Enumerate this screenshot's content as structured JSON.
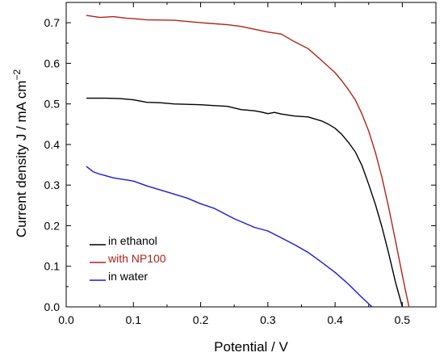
{
  "chart_data": {
    "type": "line",
    "xlabel": "Potential / V",
    "ylabel": "Current density J / mA cm",
    "ylabel_superscript": "−2",
    "xlim": [
      0.0,
      0.55
    ],
    "ylim": [
      0.0,
      0.75
    ],
    "x_ticks": [
      "0.0",
      "0.1",
      "0.2",
      "0.3",
      "0.4",
      "0.5"
    ],
    "y_ticks": [
      "0.0",
      "0.1",
      "0.2",
      "0.3",
      "0.4",
      "0.5",
      "0.6",
      "0.7"
    ],
    "grid": false,
    "legend_position": "bottom-left",
    "series": [
      {
        "name": "in ethanol",
        "color": "#000000",
        "x": [
          0.03,
          0.06,
          0.08,
          0.1,
          0.12,
          0.14,
          0.16,
          0.2,
          0.24,
          0.26,
          0.28,
          0.29,
          0.3,
          0.31,
          0.32,
          0.34,
          0.36,
          0.38,
          0.39,
          0.4,
          0.41,
          0.42,
          0.43,
          0.44,
          0.45,
          0.46,
          0.47,
          0.48,
          0.49,
          0.5
        ],
        "y": [
          0.514,
          0.514,
          0.513,
          0.51,
          0.504,
          0.503,
          0.5,
          0.498,
          0.494,
          0.486,
          0.483,
          0.48,
          0.476,
          0.479,
          0.475,
          0.47,
          0.468,
          0.458,
          0.45,
          0.44,
          0.425,
          0.405,
          0.382,
          0.348,
          0.302,
          0.252,
          0.195,
          0.13,
          0.06,
          0.0
        ]
      },
      {
        "name": "with NP100",
        "color": "#b22218",
        "x": [
          0.03,
          0.05,
          0.07,
          0.09,
          0.1,
          0.12,
          0.16,
          0.2,
          0.24,
          0.26,
          0.28,
          0.3,
          0.32,
          0.34,
          0.36,
          0.38,
          0.4,
          0.41,
          0.42,
          0.43,
          0.44,
          0.45,
          0.46,
          0.47,
          0.48,
          0.49,
          0.5,
          0.505,
          0.51
        ],
        "y": [
          0.718,
          0.713,
          0.715,
          0.711,
          0.71,
          0.707,
          0.706,
          0.7,
          0.695,
          0.691,
          0.684,
          0.677,
          0.672,
          0.653,
          0.636,
          0.607,
          0.577,
          0.557,
          0.535,
          0.51,
          0.475,
          0.433,
          0.38,
          0.317,
          0.243,
          0.162,
          0.078,
          0.038,
          0.0
        ]
      },
      {
        "name": "in water",
        "color": "#1a1adc",
        "x": [
          0.03,
          0.04,
          0.05,
          0.07,
          0.1,
          0.12,
          0.15,
          0.18,
          0.2,
          0.22,
          0.25,
          0.28,
          0.3,
          0.32,
          0.34,
          0.36,
          0.38,
          0.4,
          0.42,
          0.44,
          0.455
        ],
        "y": [
          0.346,
          0.333,
          0.327,
          0.318,
          0.31,
          0.298,
          0.283,
          0.268,
          0.254,
          0.243,
          0.217,
          0.196,
          0.187,
          0.17,
          0.153,
          0.134,
          0.11,
          0.085,
          0.056,
          0.023,
          0.0
        ]
      }
    ]
  }
}
